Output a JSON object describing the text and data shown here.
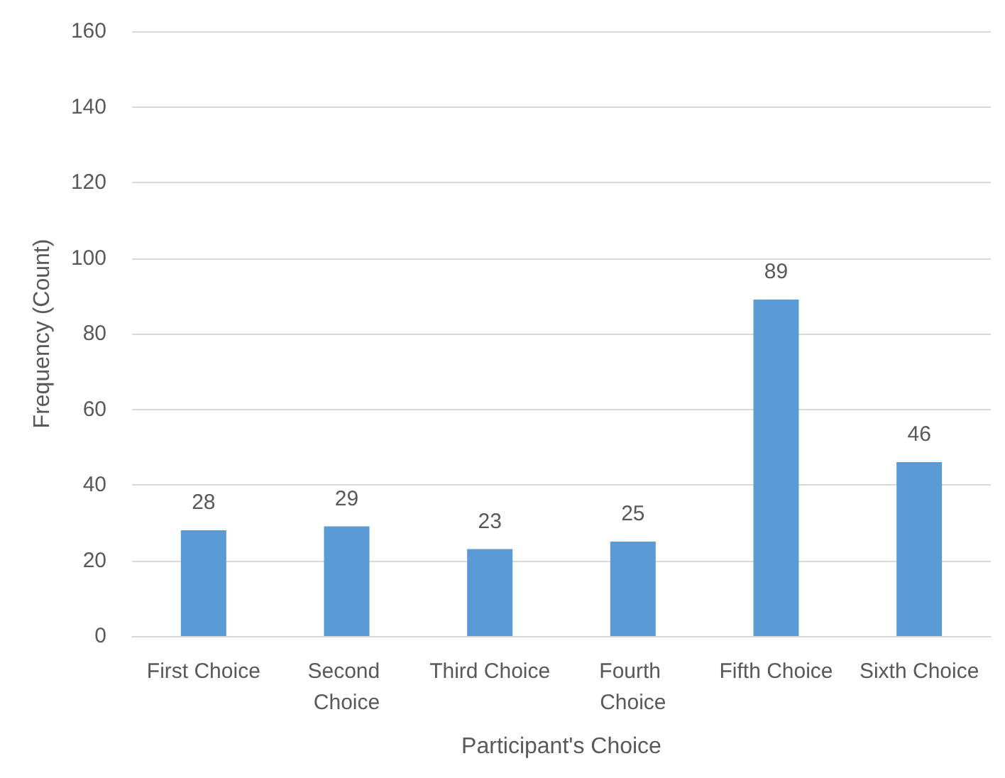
{
  "chart_data": {
    "type": "bar",
    "xlabel": "Participant's Choice",
    "ylabel": "Frequency (Count)",
    "categories": [
      "First Choice",
      "Second Choice",
      "Third Choice",
      "Fourth Choice",
      "Fifth Choice",
      "Sixth Choice"
    ],
    "values": [
      28,
      29,
      23,
      25,
      89,
      46
    ],
    "color": "#5b9bd5",
    "ylim": [
      0,
      160
    ],
    "yticks": [
      0,
      20,
      40,
      60,
      80,
      100,
      120,
      140,
      160
    ],
    "grid": "y",
    "data_labels": true
  }
}
